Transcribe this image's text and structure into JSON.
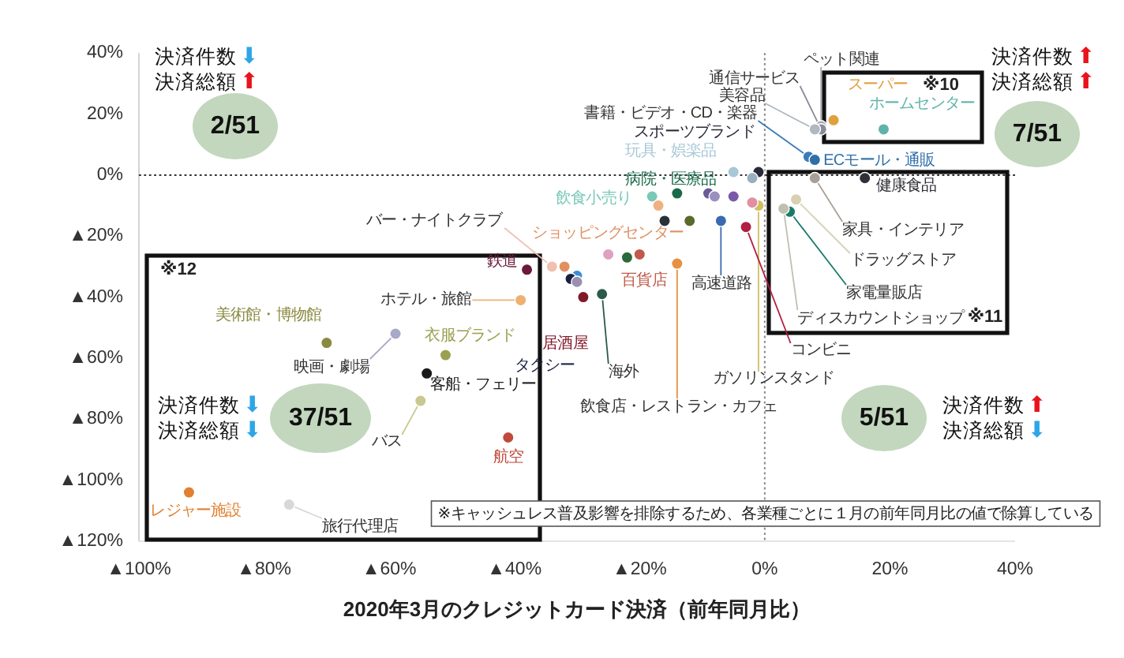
{
  "chart_data": {
    "type": "scatter",
    "xlabel": "2020年3月のクレジットカード決済（前年同月比）",
    "xlim": [
      -100,
      40
    ],
    "ylim": [
      -120,
      40
    ],
    "xticks": [
      {
        "value": -100,
        "label": "▲100%"
      },
      {
        "value": -80,
        "label": "▲80%"
      },
      {
        "value": -60,
        "label": "▲60%"
      },
      {
        "value": -40,
        "label": "▲40%"
      },
      {
        "value": -20,
        "label": "▲20%"
      },
      {
        "value": 0,
        "label": "0%"
      },
      {
        "value": 20,
        "label": "20%"
      },
      {
        "value": 40,
        "label": "40%"
      }
    ],
    "yticks": [
      {
        "value": 40,
        "label": "40%"
      },
      {
        "value": 20,
        "label": "20%"
      },
      {
        "value": 0,
        "label": "0%"
      },
      {
        "value": -20,
        "label": "▲20%"
      },
      {
        "value": -40,
        "label": "▲40%"
      },
      {
        "value": -60,
        "label": "▲60%"
      },
      {
        "value": -80,
        "label": "▲80%"
      },
      {
        "value": -100,
        "label": "▲100%"
      },
      {
        "value": -120,
        "label": "▲120%"
      }
    ],
    "marker": "circle",
    "ref_lines": [
      {
        "axis": "x",
        "value": 0,
        "line_style": "dotted",
        "color": "#888888"
      },
      {
        "axis": "y",
        "value": 0,
        "line_style": "dotted",
        "color": "#333333"
      }
    ],
    "annotations": [
      "決済件数⬇",
      "決済総額⬆",
      "2/51",
      "決済件数⬆",
      "決済総額⬆",
      "7/51",
      "決済件数⬇",
      "決済総額⬇",
      "37/51",
      "決済件数⬆",
      "決済総額⬇",
      "5/51",
      "※10",
      "※11",
      "※12",
      "※キャッシュレス普及影響を排除するため、各業種ごとに１月の前年同月比の値で除算している"
    ],
    "series": [
      {
        "name": "ペット関連",
        "color": "#a8a8b0",
        "x": [
          9
        ],
        "values": [
          16
        ]
      },
      {
        "name": "通信サービス",
        "color": "#8a8a98",
        "x": [
          9
        ],
        "values": [
          15
        ]
      },
      {
        "name": "美容品",
        "color": "#b0b8c0",
        "x": [
          8
        ],
        "values": [
          15
        ]
      },
      {
        "name": "スーパー",
        "color": "#e0a040",
        "x": [
          11
        ],
        "values": [
          18
        ]
      },
      {
        "name": "ホームセンター",
        "color": "#5fb3a8",
        "x": [
          19
        ],
        "values": [
          15
        ]
      },
      {
        "name": "書籍・ビデオ・CD・楽器",
        "color": "#3a7ab8",
        "x": [
          7
        ],
        "values": [
          6
        ]
      },
      {
        "name": "ECモール・通販",
        "color": "#2f6fa8",
        "x": [
          8
        ],
        "values": [
          5
        ]
      },
      {
        "name": "スポーツブランド",
        "color": "#2a2a3a",
        "x": [
          -1
        ],
        "values": [
          1
        ]
      },
      {
        "name": "玩具・娯楽品",
        "color": "#a8c8d8",
        "x": [
          -5
        ],
        "values": [
          1
        ]
      },
      {
        "color": "#98b0c0",
        "x": [
          -2
        ],
        "values": [
          -1
        ]
      },
      {
        "name": "健康食品",
        "color": "#303038",
        "x": [
          16
        ],
        "values": [
          -1
        ]
      },
      {
        "name": "家具・インテリア",
        "color": "#a8a098",
        "x": [
          8
        ],
        "values": [
          -1
        ]
      },
      {
        "name": "ドラッグストア",
        "color": "#d8d0b0",
        "x": [
          5
        ],
        "values": [
          -8
        ]
      },
      {
        "name": "家電量販店",
        "color": "#1a7a6a",
        "x": [
          4
        ],
        "values": [
          -12
        ]
      },
      {
        "name": "ディスカウントショップ",
        "color": "#c0c0b0",
        "x": [
          3
        ],
        "values": [
          -11
        ]
      },
      {
        "name": "ガソリンスタンド",
        "color": "#d0c060",
        "x": [
          -1
        ],
        "values": [
          -10
        ]
      },
      {
        "name": "飲食小売り",
        "color": "#7ac8b8",
        "x": [
          -18
        ],
        "values": [
          -7
        ]
      },
      {
        "name": "病院・医療品",
        "color": "#1a6a4a",
        "x": [
          -14
        ],
        "values": [
          -6
        ]
      },
      {
        "color": "#f0b080",
        "x": [
          -17
        ],
        "values": [
          -10
        ]
      },
      {
        "color": "#6a5a9a",
        "x": [
          -9
        ],
        "values": [
          -6
        ]
      },
      {
        "color": "#9a90c0",
        "x": [
          -8
        ],
        "values": [
          -7
        ]
      },
      {
        "color": "#7a5aa8",
        "x": [
          -5
        ],
        "values": [
          -7
        ]
      },
      {
        "color": "#e090a0",
        "x": [
          -2
        ],
        "values": [
          -9
        ]
      },
      {
        "color": "#2a3038",
        "x": [
          -16
        ],
        "values": [
          -15
        ]
      },
      {
        "color": "#5a6a2a",
        "x": [
          -12
        ],
        "values": [
          -15
        ]
      },
      {
        "name": "高速道路",
        "color": "#3a6ab0",
        "x": [
          -7
        ],
        "values": [
          -15
        ]
      },
      {
        "name": "コンビニ",
        "color": "#b02040",
        "x": [
          -3
        ],
        "values": [
          -17
        ]
      },
      {
        "color": "#e0a0c0",
        "x": [
          -25
        ],
        "values": [
          -26
        ]
      },
      {
        "color": "#2a6a3a",
        "x": [
          -22
        ],
        "values": [
          -27
        ]
      },
      {
        "name": "百貨店",
        "color": "#c05a4a",
        "x": [
          -20
        ],
        "values": [
          -26
        ]
      },
      {
        "name": "飲食店・レストラン・カフェ",
        "color": "#e89040",
        "x": [
          -14
        ],
        "values": [
          -29
        ]
      },
      {
        "name": "ショッピングセンター",
        "color": "#e09060",
        "x": [
          -32
        ],
        "values": [
          -30
        ]
      },
      {
        "name": "バー・ナイトクラブ",
        "color": "#f0c0b0",
        "x": [
          -34
        ],
        "values": [
          -30
        ]
      },
      {
        "color": "#3a90d0",
        "x": [
          -30
        ],
        "values": [
          -33
        ]
      },
      {
        "name": "タクシー",
        "color": "#1a2040",
        "x": [
          -31
        ],
        "values": [
          -34
        ]
      },
      {
        "color": "#9a90b0",
        "x": [
          -30
        ],
        "values": [
          -35
        ]
      },
      {
        "name": "居酒屋",
        "color": "#801a2a",
        "x": [
          -29
        ],
        "values": [
          -40
        ]
      },
      {
        "name": "海外",
        "color": "#2a5a4a",
        "x": [
          -26
        ],
        "values": [
          -39
        ]
      },
      {
        "name": "鉄道",
        "color": "#6a1a3a",
        "x": [
          -38
        ],
        "values": [
          -31
        ]
      },
      {
        "name": "ホテル・旅館",
        "color": "#f0b070",
        "x": [
          -39
        ],
        "values": [
          -41
        ]
      },
      {
        "name": "衣服ブランド",
        "color": "#9aa050",
        "x": [
          -51
        ],
        "values": [
          -59
        ]
      },
      {
        "name": "客船・フェリー",
        "color": "#1a1a1a",
        "x": [
          -54
        ],
        "values": [
          -65
        ]
      },
      {
        "name": "バス",
        "color": "#c8c890",
        "x": [
          -55
        ],
        "values": [
          -74
        ]
      },
      {
        "name": "映画・劇場",
        "color": "#a8a8c8",
        "x": [
          -59
        ],
        "values": [
          -52
        ]
      },
      {
        "name": "美術館・博物館",
        "color": "#8a8a40",
        "x": [
          -70
        ],
        "values": [
          -55
        ]
      },
      {
        "name": "航空",
        "color": "#c04a3a",
        "x": [
          -41
        ],
        "values": [
          -86
        ]
      },
      {
        "name": "レジャー施設",
        "color": "#e08030",
        "x": [
          -92
        ],
        "values": [
          -104
        ]
      },
      {
        "name": "旅行代理店",
        "color": "#d8d8d8",
        "x": [
          -76
        ],
        "values": [
          -108
        ]
      }
    ]
  }
}
